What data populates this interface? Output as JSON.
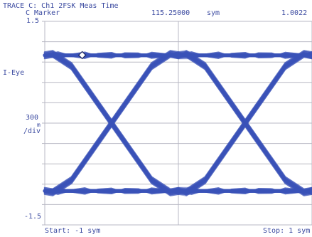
{
  "header": {
    "trace_title": "TRACE C: Ch1 2FSK Meas Time",
    "marker_label": "C Marker",
    "marker_x": "115.25000",
    "marker_x_unit": "sym",
    "marker_y": "1.0022"
  },
  "axis": {
    "y_top": "1.5",
    "y_bottom": "-1.5",
    "y_name": "I-Eye",
    "scale_value": "300",
    "scale_prefix": "m",
    "scale_unit": "/div"
  },
  "footer": {
    "start": "Start: -1 sym",
    "stop": "Stop: 1 sym"
  },
  "colors": {
    "trace": "#3a52b8",
    "grid": "#b9b9c4",
    "text": "#3b4aa0"
  },
  "chart_data": {
    "type": "line",
    "title": "TRACE C: Ch1 2FSK Meas Time",
    "ylabel": "I-Eye",
    "xlim": [
      -1,
      1
    ],
    "ylim": [
      -1.5,
      1.5
    ],
    "x_unit": "sym",
    "y_scale_per_div": 0.3,
    "grid": true,
    "marker": {
      "x": 115.25,
      "y": 1.0022
    },
    "eye_levels": [
      1.0,
      -1.0
    ],
    "transition_points": [
      -1,
      0,
      1
    ],
    "crossing_points": [
      -0.5,
      0.5
    ]
  }
}
